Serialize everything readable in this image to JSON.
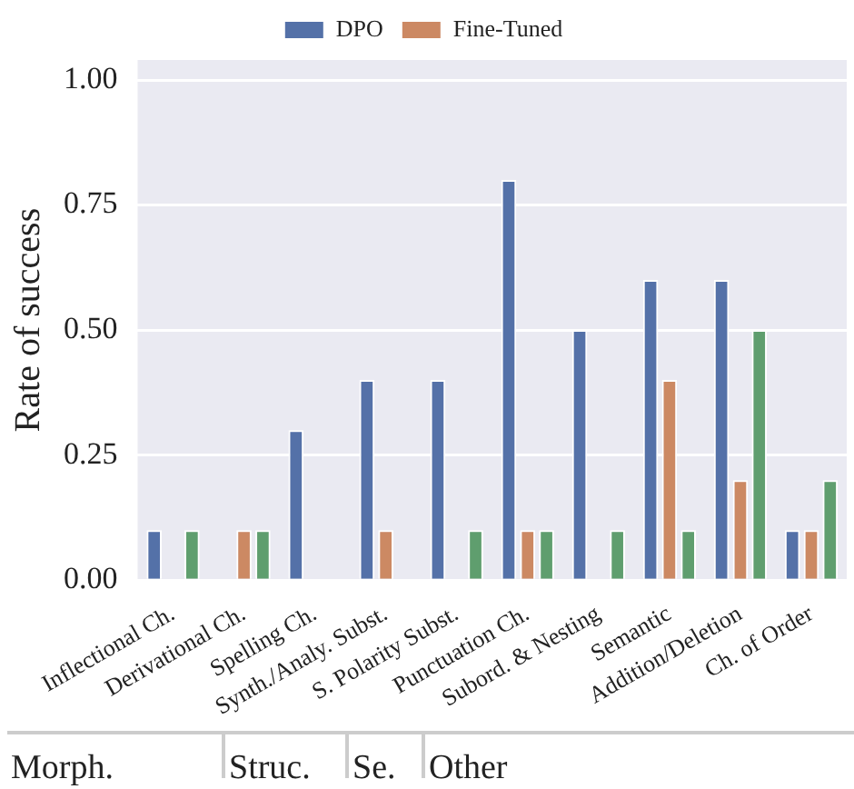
{
  "chart_data": {
    "type": "bar",
    "ylabel": "Rate of success",
    "categories": [
      "Inflectional Ch.",
      "Derivational Ch.",
      "Spelling Ch.",
      "Synth./Analy. Subst.",
      "S. Polarity Subst.",
      "Punctuation Ch.",
      "Subord. & Nesting",
      "Semantic",
      "Addition/Deletion",
      "Ch. of Order"
    ],
    "series": [
      {
        "name": "DPO",
        "color": "#5471a8",
        "values": [
          0.1,
          0,
          0.3,
          0.4,
          0.4,
          0.8,
          0.5,
          0.6,
          0.6,
          0.1
        ]
      },
      {
        "name": "Fine-Tuned",
        "color": "#cc8963",
        "values": [
          0,
          0.1,
          0,
          0.1,
          0,
          0.1,
          0,
          0.4,
          0.2,
          0.1
        ]
      },
      {
        "color": "#5f9e6e",
        "values": [
          0.1,
          0.1,
          0,
          0,
          0.1,
          0.1,
          0.1,
          0.1,
          0.5,
          0.2
        ]
      }
    ],
    "ylim": [
      0,
      1.04
    ],
    "yticks": [
      {
        "value": 0,
        "label": "0.00"
      },
      {
        "value": 0.25,
        "label": "0.25"
      },
      {
        "value": 0.5,
        "label": "0.50"
      },
      {
        "value": 0.75,
        "label": "0.75"
      },
      {
        "value": 1,
        "label": "1.00"
      }
    ],
    "grid": "y",
    "legend": "top",
    "annotations": [
      "Morph.",
      "Struc.",
      "Se.",
      "Other"
    ]
  }
}
